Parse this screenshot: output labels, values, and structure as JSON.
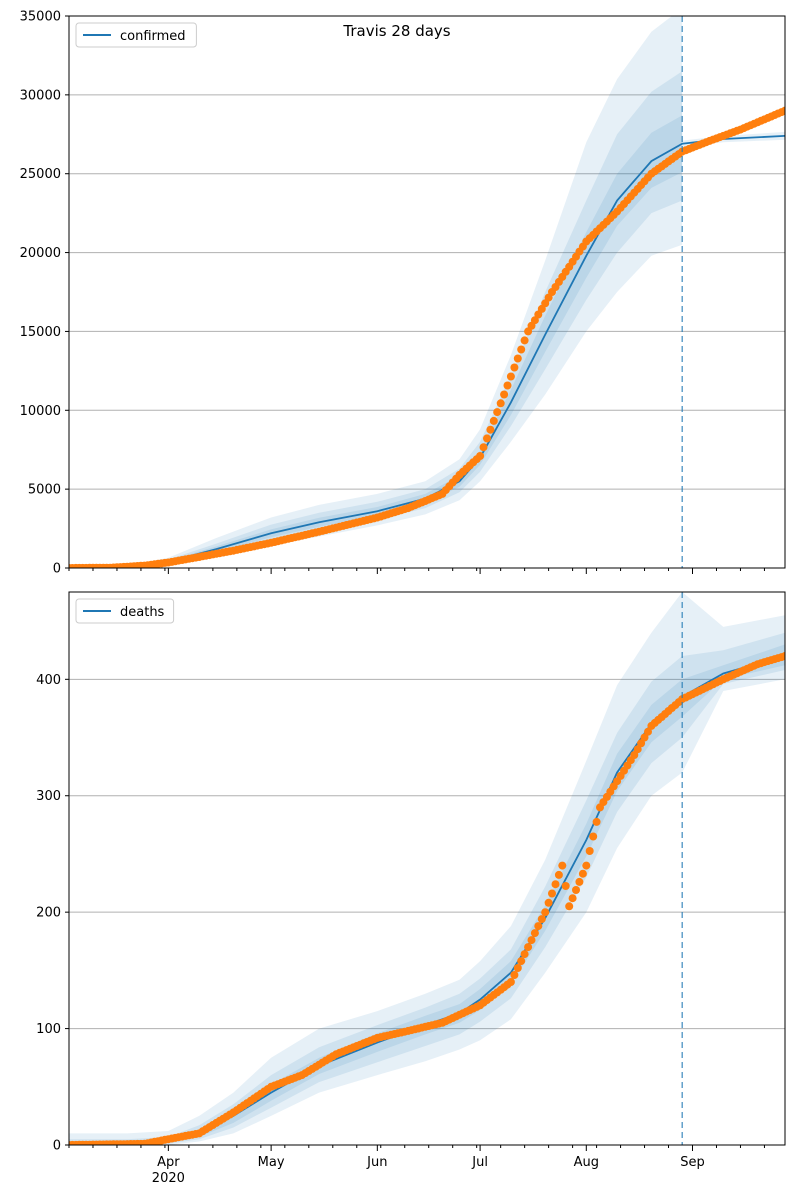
{
  "figure": {
    "title": "Travis 28 days"
  },
  "colors": {
    "model": "#1f77b4",
    "observed": "#ff7f0e",
    "band": "#1f77b4",
    "grid": "#b0b0b0",
    "forecast_line": "#1f77b4"
  },
  "x_axis": {
    "start": "2020-03-03",
    "end": "2020-09-28",
    "forecast_start": "2020-08-29",
    "major_ticks": [
      {
        "date": "2020-04-01",
        "label": "Apr"
      },
      {
        "date": "2020-05-01",
        "label": "May"
      },
      {
        "date": "2020-06-01",
        "label": "Jun"
      },
      {
        "date": "2020-07-01",
        "label": "Jul"
      },
      {
        "date": "2020-08-01",
        "label": "Aug"
      },
      {
        "date": "2020-09-01",
        "label": "Sep"
      }
    ],
    "year_label": "2020"
  },
  "chart_data": [
    {
      "type": "line",
      "legend": {
        "label": "confirmed",
        "position": "top-left"
      },
      "ylim": [
        0,
        35000
      ],
      "yticks": [
        0,
        5000,
        10000,
        15000,
        20000,
        25000,
        30000,
        35000
      ],
      "grid": "horizontal",
      "model": {
        "x": [
          "2020-03-03",
          "2020-03-20",
          "2020-04-01",
          "2020-04-15",
          "2020-05-01",
          "2020-05-15",
          "2020-06-01",
          "2020-06-15",
          "2020-06-25",
          "2020-07-01",
          "2020-07-10",
          "2020-07-20",
          "2020-08-01",
          "2020-08-10",
          "2020-08-20",
          "2020-08-29",
          "2020-09-10",
          "2020-09-28"
        ],
        "y": [
          0,
          80,
          400,
          1200,
          2200,
          2900,
          3600,
          4400,
          5500,
          7000,
          10500,
          14800,
          19800,
          23300,
          25800,
          26900,
          27200,
          27400
        ]
      },
      "bands": [
        {
          "x": [
            "2020-03-03",
            "2020-03-20",
            "2020-04-01",
            "2020-04-15",
            "2020-05-01",
            "2020-05-15",
            "2020-06-01",
            "2020-06-15",
            "2020-06-25",
            "2020-07-01",
            "2020-07-10",
            "2020-07-20",
            "2020-08-01",
            "2020-08-10",
            "2020-08-20",
            "2020-08-29"
          ],
          "lower": [
            0,
            40,
            200,
            700,
            1400,
            2000,
            2700,
            3400,
            4300,
            5500,
            8000,
            11000,
            15000,
            17500,
            19800,
            20500
          ],
          "upper": [
            0,
            130,
            650,
            1900,
            3200,
            4000,
            4700,
            5500,
            6900,
            8800,
            13500,
            19500,
            27000,
            31000,
            34000,
            35500
          ]
        },
        {
          "x": [
            "2020-03-03",
            "2020-03-20",
            "2020-04-01",
            "2020-04-15",
            "2020-05-01",
            "2020-05-15",
            "2020-06-01",
            "2020-06-15",
            "2020-06-25",
            "2020-07-01",
            "2020-07-10",
            "2020-07-20",
            "2020-08-01",
            "2020-08-10",
            "2020-08-20",
            "2020-08-29"
          ],
          "lower": [
            0,
            55,
            270,
            900,
            1700,
            2350,
            3050,
            3800,
            4800,
            6100,
            9000,
            12600,
            17000,
            20000,
            22500,
            23300
          ],
          "upper": [
            0,
            110,
            540,
            1550,
            2750,
            3500,
            4200,
            5000,
            6300,
            8000,
            12200,
            17500,
            23300,
            27500,
            30200,
            31500
          ]
        },
        {
          "x": [
            "2020-03-03",
            "2020-03-20",
            "2020-04-01",
            "2020-04-15",
            "2020-05-01",
            "2020-05-15",
            "2020-06-01",
            "2020-06-15",
            "2020-06-25",
            "2020-07-01",
            "2020-07-10",
            "2020-07-20",
            "2020-08-01",
            "2020-08-10",
            "2020-08-20",
            "2020-08-29"
          ],
          "lower": [
            0,
            65,
            330,
            1030,
            1950,
            2620,
            3330,
            4100,
            5150,
            6550,
            9700,
            13700,
            18400,
            21700,
            24100,
            25100
          ],
          "upper": [
            0,
            95,
            470,
            1370,
            2450,
            3180,
            3870,
            4700,
            5850,
            7450,
            11300,
            16000,
            21300,
            25000,
            27600,
            28700
          ]
        },
        {
          "x": [
            "2020-08-29",
            "2020-09-10",
            "2020-09-28"
          ],
          "lower": [
            26700,
            27000,
            27150
          ],
          "upper": [
            27100,
            27400,
            27650
          ]
        }
      ],
      "observed": {
        "x": [
          "2020-03-03",
          "2020-03-15",
          "2020-03-25",
          "2020-04-01",
          "2020-04-10",
          "2020-04-20",
          "2020-05-01",
          "2020-05-15",
          "2020-06-01",
          "2020-06-10",
          "2020-06-20",
          "2020-06-25",
          "2020-07-01",
          "2020-07-08",
          "2020-07-15",
          "2020-07-22",
          "2020-08-01",
          "2020-08-10",
          "2020-08-20",
          "2020-08-29",
          "2020-09-05",
          "2020-09-15",
          "2020-09-28"
        ],
        "y": [
          0,
          20,
          150,
          350,
          700,
          1100,
          1600,
          2300,
          3200,
          3800,
          4700,
          5900,
          7100,
          11000,
          15000,
          17500,
          20700,
          22600,
          25000,
          26400,
          27000,
          27800,
          29000
        ]
      }
    },
    {
      "type": "line",
      "legend": {
        "label": "deaths",
        "position": "top-left"
      },
      "ylim": [
        0,
        475
      ],
      "yticks": [
        0,
        100,
        200,
        300,
        400
      ],
      "grid": "horizontal",
      "model": {
        "x": [
          "2020-03-03",
          "2020-03-20",
          "2020-04-01",
          "2020-04-10",
          "2020-04-20",
          "2020-05-01",
          "2020-05-15",
          "2020-06-01",
          "2020-06-15",
          "2020-06-25",
          "2020-07-01",
          "2020-07-10",
          "2020-07-20",
          "2020-08-01",
          "2020-08-10",
          "2020-08-20",
          "2020-08-29",
          "2020-09-10",
          "2020-09-28"
        ],
        "y": [
          0,
          0,
          3,
          10,
          25,
          45,
          68,
          88,
          103,
          113,
          125,
          148,
          195,
          262,
          320,
          362,
          385,
          405,
          420
        ]
      },
      "bands": [
        {
          "x": [
            "2020-03-03",
            "2020-03-20",
            "2020-04-01",
            "2020-04-10",
            "2020-04-20",
            "2020-05-01",
            "2020-05-15",
            "2020-06-01",
            "2020-06-15",
            "2020-06-25",
            "2020-07-01",
            "2020-07-10",
            "2020-07-20",
            "2020-08-01",
            "2020-08-10",
            "2020-08-20",
            "2020-08-29",
            "2020-09-10",
            "2020-09-28"
          ],
          "lower": [
            0,
            0,
            0,
            3,
            10,
            25,
            45,
            60,
            72,
            82,
            90,
            108,
            148,
            200,
            255,
            300,
            320,
            390,
            400
          ],
          "upper": [
            10,
            10,
            12,
            25,
            45,
            75,
            100,
            115,
            130,
            142,
            158,
            188,
            245,
            330,
            395,
            440,
            475,
            445,
            455
          ]
        },
        {
          "x": [
            "2020-03-03",
            "2020-03-20",
            "2020-04-01",
            "2020-04-10",
            "2020-04-20",
            "2020-05-01",
            "2020-05-15",
            "2020-06-01",
            "2020-06-15",
            "2020-06-25",
            "2020-07-01",
            "2020-07-10",
            "2020-07-20",
            "2020-08-01",
            "2020-08-10",
            "2020-08-20",
            "2020-08-29",
            "2020-09-10",
            "2020-09-28"
          ],
          "lower": [
            0,
            0,
            1,
            5,
            15,
            32,
            54,
            71,
            85,
            95,
            106,
            126,
            170,
            230,
            286,
            328,
            350,
            396,
            408
          ],
          "upper": [
            5,
            5,
            7,
            17,
            35,
            60,
            84,
            103,
            118,
            130,
            143,
            168,
            222,
            296,
            354,
            398,
            420,
            425,
            440
          ]
        },
        {
          "x": [
            "2020-03-03",
            "2020-03-20",
            "2020-04-01",
            "2020-04-10",
            "2020-04-20",
            "2020-05-01",
            "2020-05-15",
            "2020-06-01",
            "2020-06-15",
            "2020-06-25",
            "2020-07-01",
            "2020-07-10",
            "2020-07-20",
            "2020-08-01",
            "2020-08-10",
            "2020-08-20",
            "2020-08-29",
            "2020-09-10",
            "2020-09-28"
          ],
          "lower": [
            0,
            0,
            2,
            7,
            19,
            38,
            61,
            80,
            95,
            105,
            116,
            138,
            184,
            248,
            304,
            346,
            368,
            400,
            412
          ],
          "upper": [
            2,
            2,
            4,
            13,
            30,
            52,
            75,
            96,
            111,
            121,
            134,
            158,
            206,
            276,
            336,
            378,
            400,
            412,
            430
          ]
        }
      ],
      "observed": {
        "x": [
          "2020-03-03",
          "2020-03-25",
          "2020-04-01",
          "2020-04-10",
          "2020-04-20",
          "2020-05-01",
          "2020-05-10",
          "2020-05-20",
          "2020-06-01",
          "2020-06-10",
          "2020-06-20",
          "2020-07-01",
          "2020-07-10",
          "2020-07-20",
          "2020-07-25",
          "2020-07-27",
          "2020-08-01",
          "2020-08-05",
          "2020-08-15",
          "2020-08-20",
          "2020-08-29",
          "2020-09-10",
          "2020-09-20",
          "2020-09-28"
        ],
        "y": [
          0,
          1,
          5,
          10,
          28,
          50,
          60,
          78,
          92,
          98,
          105,
          120,
          140,
          200,
          240,
          205,
          240,
          290,
          335,
          360,
          383,
          400,
          413,
          420
        ]
      }
    }
  ]
}
